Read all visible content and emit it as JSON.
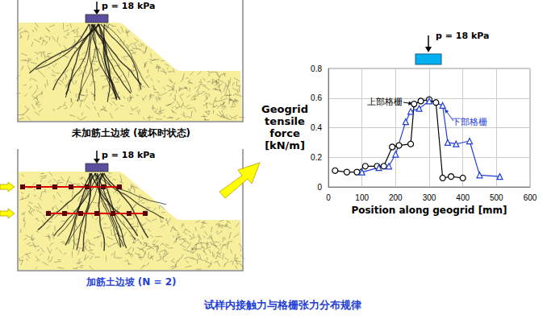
{
  "chart_data": {
    "type": "line",
    "xlabel": "Position along geogrid [mm]",
    "ylabel": "Geogrid tensile force [kN/m]",
    "load_label": "p = 18 kPa",
    "xlim": [
      0,
      600
    ],
    "xticks": [
      0,
      100,
      200,
      300,
      400,
      500,
      600
    ],
    "ylim": [
      0,
      0.8
    ],
    "yticks": [
      0,
      0.2,
      0.4,
      0.6,
      0.8
    ],
    "grid": true,
    "series": [
      {
        "name": "上部格栅",
        "color": "#000000",
        "marker": "circle",
        "x": [
          20,
          55,
          85,
          110,
          145,
          165,
          190,
          210,
          245,
          255,
          275,
          300,
          320,
          340,
          365,
          400
        ],
        "values": [
          0.11,
          0.1,
          0.1,
          0.14,
          0.14,
          0.14,
          0.27,
          0.28,
          0.29,
          0.56,
          0.58,
          0.59,
          0.57,
          0.06,
          0.07,
          0.06
        ]
      },
      {
        "name": "下部格栅",
        "color": "#1f3fd6",
        "marker": "triangle",
        "x": [
          100,
          150,
          180,
          200,
          230,
          245,
          270,
          300,
          340,
          355,
          380,
          420,
          450,
          510
        ],
        "values": [
          0.1,
          0.13,
          0.14,
          0.22,
          0.44,
          0.51,
          0.53,
          0.58,
          0.55,
          0.3,
          0.29,
          0.31,
          0.08,
          0.07
        ]
      }
    ]
  },
  "panels": [
    {
      "label": "未加筋土边坡 (破坏时状态)",
      "load_label": "p = 18 kPa",
      "reinforced": false
    },
    {
      "label": "加筋土边坡 (N = 2)",
      "load_label": "p = 18 kPa",
      "reinforced": true
    }
  ],
  "caption": "试样内接触力与格栅张力分布规律"
}
